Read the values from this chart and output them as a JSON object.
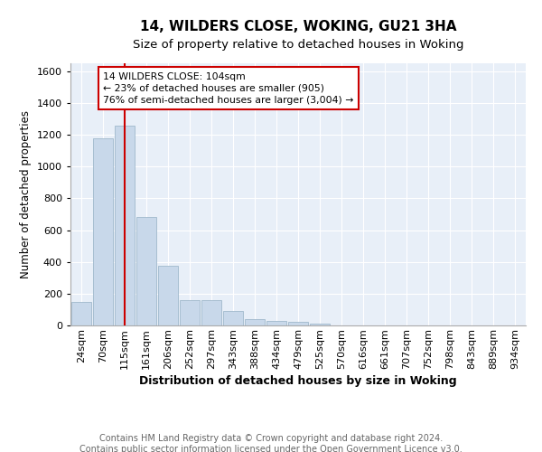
{
  "title": "14, WILDERS CLOSE, WOKING, GU21 3HA",
  "subtitle": "Size of property relative to detached houses in Woking",
  "xlabel": "Distribution of detached houses by size in Woking",
  "ylabel": "Number of detached properties",
  "footer_line1": "Contains HM Land Registry data © Crown copyright and database right 2024.",
  "footer_line2": "Contains public sector information licensed under the Open Government Licence v3.0.",
  "categories": [
    "24sqm",
    "70sqm",
    "115sqm",
    "161sqm",
    "206sqm",
    "252sqm",
    "297sqm",
    "343sqm",
    "388sqm",
    "434sqm",
    "479sqm",
    "525sqm",
    "570sqm",
    "616sqm",
    "661sqm",
    "707sqm",
    "752sqm",
    "798sqm",
    "843sqm",
    "889sqm",
    "934sqm"
  ],
  "values": [
    150,
    1175,
    1260,
    685,
    378,
    160,
    160,
    93,
    37,
    30,
    20,
    10,
    0,
    0,
    0,
    0,
    0,
    0,
    0,
    0,
    0
  ],
  "bar_color": "#c8d8ea",
  "bar_edge_color": "#a0b8cc",
  "bg_color": "#e8eff8",
  "grid_color": "#ffffff",
  "ylim": [
    0,
    1650
  ],
  "yticks": [
    0,
    200,
    400,
    600,
    800,
    1000,
    1200,
    1400,
    1600
  ],
  "vline_x": 2.0,
  "vline_color": "#cc0000",
  "annotation_text": "14 WILDERS CLOSE: 104sqm\n← 23% of detached houses are smaller (905)\n76% of semi-detached houses are larger (3,004) →",
  "title_fontsize": 11,
  "subtitle_fontsize": 9.5,
  "xlabel_fontsize": 9,
  "ylabel_fontsize": 8.5,
  "tick_fontsize": 8,
  "footer_fontsize": 7
}
